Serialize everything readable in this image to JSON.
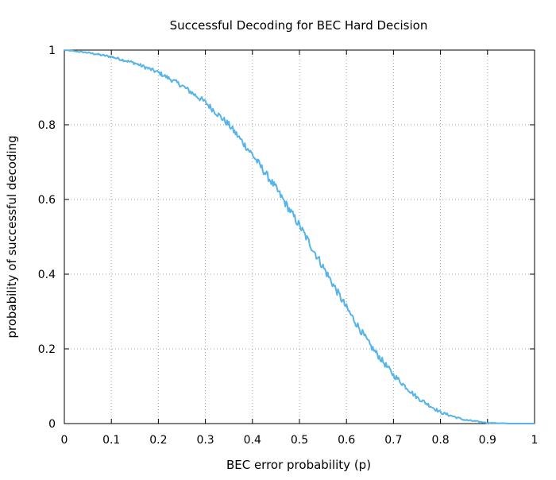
{
  "chart_data": {
    "type": "line",
    "title": "Successful Decoding for BEC Hard Decision",
    "xlabel": "BEC error probability (p)",
    "ylabel": "probability of successful decoding",
    "xlim": [
      0,
      1
    ],
    "ylim": [
      0,
      1
    ],
    "xticks": [
      0,
      0.1,
      0.2,
      0.3,
      0.4,
      0.5,
      0.6,
      0.7,
      0.8,
      0.9,
      1
    ],
    "xtick_labels": [
      "0",
      "0.1",
      "0.2",
      "0.3",
      "0.4",
      "0.5",
      "0.6",
      "0.7",
      "0.8",
      "0.9",
      "1"
    ],
    "yticks": [
      0,
      0.2,
      0.4,
      0.6,
      0.8,
      1
    ],
    "ytick_labels": [
      "0",
      "0.2",
      "0.4",
      "0.6",
      "0.8",
      "1"
    ],
    "grid": true,
    "legend": "none",
    "line_color": "#56b4e9",
    "series": [
      {
        "x": [
          0,
          0.05,
          0.1,
          0.15,
          0.2,
          0.25,
          0.3,
          0.35,
          0.4,
          0.45,
          0.5,
          0.55,
          0.6,
          0.65,
          0.7,
          0.75,
          0.8,
          0.85,
          0.9,
          0.95,
          1
        ],
        "values": [
          1.0,
          0.993,
          0.982,
          0.965,
          0.94,
          0.905,
          0.86,
          0.8,
          0.72,
          0.63,
          0.53,
          0.42,
          0.31,
          0.21,
          0.13,
          0.07,
          0.03,
          0.01,
          0.002,
          0.0,
          0.0
        ]
      }
    ]
  }
}
